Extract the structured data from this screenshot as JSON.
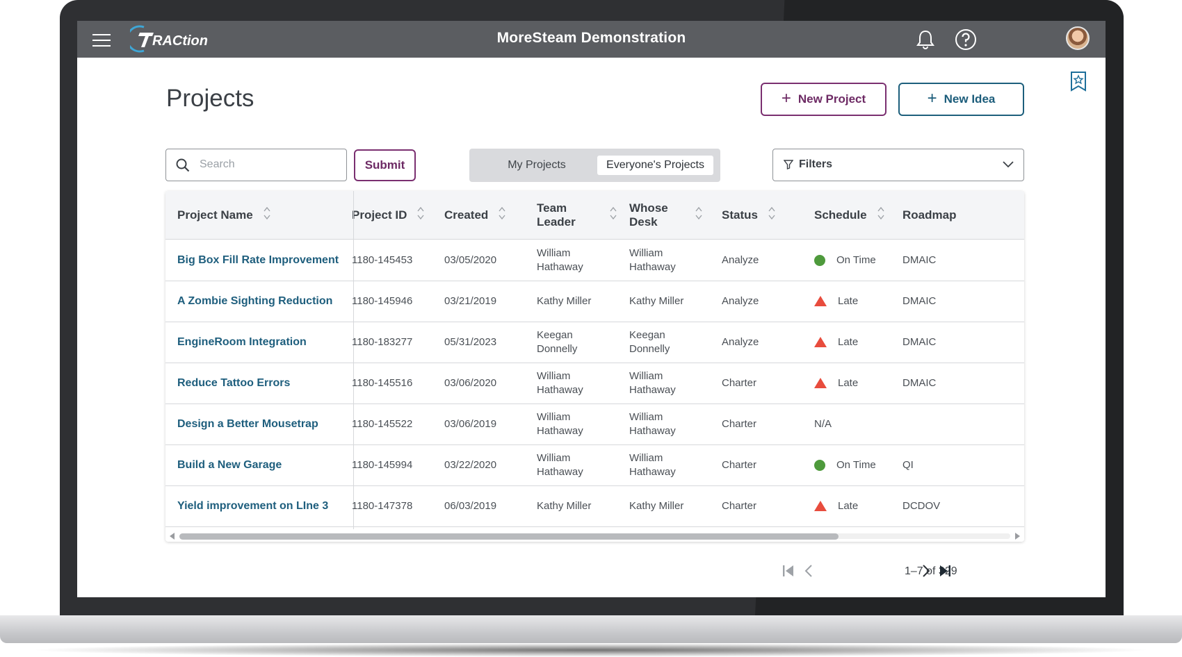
{
  "app": {
    "logo_text": "RACtion",
    "title": "MoreSteam Demonstration"
  },
  "page": {
    "title": "Projects",
    "new_project_label": "New Project",
    "new_idea_label": "New Idea"
  },
  "search": {
    "placeholder": "Search",
    "value": "",
    "submit_label": "Submit"
  },
  "scope_toggle": {
    "options": [
      "My Projects",
      "Everyone's Projects"
    ],
    "selected": "Everyone's Projects"
  },
  "filters": {
    "label": "Filters"
  },
  "table": {
    "columns": [
      "Project Name",
      "Project ID",
      "Created",
      "Team Leader",
      "Whose Desk",
      "Status",
      "Schedule",
      "Roadmap"
    ],
    "rows": [
      {
        "name": "Big Box Fill Rate Improvement",
        "id": "1180-145453",
        "created": "03/05/2020",
        "leader": "William Hathaway",
        "desk": "William Hathaway",
        "status": "Analyze",
        "schedule": "On Time",
        "schedule_icon": "green-circle",
        "roadmap": "DMAIC"
      },
      {
        "name": "A Zombie Sighting Reduction",
        "id": "1180-145946",
        "created": "03/21/2019",
        "leader": "Kathy Miller",
        "desk": "Kathy Miller",
        "status": "Analyze",
        "schedule": "Late",
        "schedule_icon": "red-triangle",
        "roadmap": "DMAIC"
      },
      {
        "name": "EngineRoom Integration",
        "id": "1180-183277",
        "created": "05/31/2023",
        "leader": "Keegan Donnelly",
        "desk": "Keegan Donnelly",
        "status": "Analyze",
        "schedule": "Late",
        "schedule_icon": "red-triangle",
        "roadmap": "DMAIC"
      },
      {
        "name": "Reduce Tattoo Errors",
        "id": "1180-145516",
        "created": "03/06/2020",
        "leader": "William Hathaway",
        "desk": "William Hathaway",
        "status": "Charter",
        "schedule": "Late",
        "schedule_icon": "red-triangle",
        "roadmap": "DMAIC"
      },
      {
        "name": "Design a Better Mousetrap",
        "id": "1180-145522",
        "created": "03/06/2019",
        "leader": "William Hathaway",
        "desk": "William Hathaway",
        "status": "Charter",
        "schedule": "N/A",
        "schedule_icon": "",
        "roadmap": ""
      },
      {
        "name": "Build a New Garage",
        "id": "1180-145994",
        "created": "03/22/2020",
        "leader": "William Hathaway",
        "desk": "William Hathaway",
        "status": "Charter",
        "schedule": "On Time",
        "schedule_icon": "green-circle",
        "roadmap": "QI"
      },
      {
        "name": "Yield improvement on LIne 3",
        "id": "1180-147378",
        "created": "06/03/2019",
        "leader": "Kathy Miller",
        "desk": "Kathy Miller",
        "status": "Charter",
        "schedule": "Late",
        "schedule_icon": "red-triangle",
        "roadmap": "DCDOV"
      }
    ]
  },
  "pagination": {
    "range_text": "1–7 of 329"
  },
  "colors": {
    "topbar": "#5b5d61",
    "accent_purple": "#7a2f70",
    "accent_teal": "#1d5f7c",
    "on_time": "#4e9a3c",
    "late": "#e84c3d"
  }
}
